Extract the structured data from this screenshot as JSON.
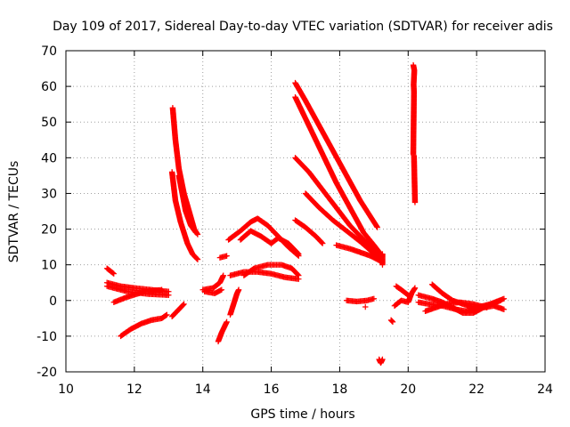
{
  "chart_data": {
    "type": "scatter",
    "title": "Day 109 of 2017, Sidereal Day-to-day VTEC variation (SDTVAR) for receiver adis",
    "xlabel": "GPS time / hours",
    "ylabel": "SDTVAR / TECUs",
    "xlim": [
      10,
      24
    ],
    "ylim": [
      -20,
      70
    ],
    "xticks": [
      "10",
      "12",
      "14",
      "16",
      "18",
      "20",
      "22",
      "24"
    ],
    "yticks": [
      "-20",
      "-10",
      "0",
      "10",
      "20",
      "30",
      "40",
      "50",
      "60",
      "70"
    ],
    "grid": true,
    "marker": "plus",
    "color": "#ff0000",
    "tracks": [
      {
        "name": "t1",
        "points": [
          [
            11.2,
            5
          ],
          [
            11.6,
            4
          ],
          [
            12.0,
            3.5
          ],
          [
            12.5,
            3
          ],
          [
            13.0,
            2.5
          ]
        ]
      },
      {
        "name": "t2",
        "points": [
          [
            11.2,
            4
          ],
          [
            11.8,
            2.5
          ],
          [
            12.4,
            1.8
          ],
          [
            13.0,
            1.5
          ]
        ]
      },
      {
        "name": "t3",
        "points": [
          [
            11.2,
            9
          ],
          [
            11.4,
            7.5
          ]
        ]
      },
      {
        "name": "t4",
        "points": [
          [
            11.4,
            -0.5
          ],
          [
            11.8,
            1
          ],
          [
            12.3,
            2.5
          ],
          [
            12.8,
            3
          ]
        ]
      },
      {
        "name": "t5",
        "points": [
          [
            11.6,
            -10
          ],
          [
            11.9,
            -8
          ],
          [
            12.2,
            -6.5
          ],
          [
            12.5,
            -5.5
          ],
          [
            12.8,
            -5
          ],
          [
            12.95,
            -4
          ]
        ]
      },
      {
        "name": "t6",
        "points": [
          [
            13.1,
            -4.5
          ],
          [
            13.3,
            -2.5
          ],
          [
            13.45,
            -1
          ]
        ]
      },
      {
        "name": "t7",
        "points": [
          [
            13.12,
            54
          ],
          [
            13.2,
            45
          ],
          [
            13.3,
            37
          ],
          [
            13.45,
            30
          ],
          [
            13.6,
            25
          ],
          [
            13.75,
            20
          ],
          [
            13.85,
            18.5
          ]
        ]
      },
      {
        "name": "t8",
        "points": [
          [
            13.1,
            36
          ],
          [
            13.2,
            28
          ],
          [
            13.35,
            22
          ],
          [
            13.55,
            16
          ],
          [
            13.7,
            13
          ],
          [
            13.85,
            11.5
          ]
        ]
      },
      {
        "name": "t9",
        "points": [
          [
            13.3,
            35
          ],
          [
            13.4,
            30
          ],
          [
            13.5,
            25
          ],
          [
            13.65,
            21
          ],
          [
            13.8,
            19
          ]
        ]
      },
      {
        "name": "t10",
        "points": [
          [
            14.0,
            3
          ],
          [
            14.3,
            3.5
          ],
          [
            14.5,
            5
          ],
          [
            14.6,
            7
          ]
        ]
      },
      {
        "name": "t11",
        "points": [
          [
            14.05,
            2.5
          ],
          [
            14.35,
            2
          ],
          [
            14.55,
            3
          ]
        ]
      },
      {
        "name": "t12",
        "points": [
          [
            14.45,
            -11.5
          ],
          [
            14.55,
            -9
          ],
          [
            14.7,
            -6
          ]
        ]
      },
      {
        "name": "t13",
        "points": [
          [
            14.8,
            -4
          ],
          [
            14.9,
            -1
          ],
          [
            15.0,
            2
          ],
          [
            15.05,
            3
          ]
        ]
      },
      {
        "name": "t14",
        "points": [
          [
            14.5,
            12
          ],
          [
            14.7,
            12.5
          ]
        ]
      },
      {
        "name": "t15",
        "points": [
          [
            14.75,
            17
          ],
          [
            15.1,
            19.5
          ],
          [
            15.4,
            22
          ],
          [
            15.6,
            23
          ],
          [
            15.9,
            21
          ],
          [
            16.2,
            18
          ],
          [
            16.5,
            15
          ],
          [
            16.8,
            12.5
          ]
        ]
      },
      {
        "name": "t16",
        "points": [
          [
            15.1,
            17
          ],
          [
            15.4,
            19.5
          ],
          [
            15.7,
            18
          ],
          [
            16.0,
            16
          ],
          [
            16.2,
            17.5
          ],
          [
            16.5,
            16
          ],
          [
            16.8,
            13
          ]
        ]
      },
      {
        "name": "t17",
        "points": [
          [
            14.8,
            7
          ],
          [
            15.2,
            8
          ],
          [
            15.6,
            8
          ],
          [
            16.0,
            7.5
          ],
          [
            16.4,
            6.5
          ],
          [
            16.8,
            6
          ]
        ]
      },
      {
        "name": "t18",
        "points": [
          [
            15.2,
            7
          ],
          [
            15.5,
            9
          ],
          [
            15.9,
            10
          ],
          [
            16.3,
            10
          ],
          [
            16.6,
            9
          ],
          [
            16.8,
            7
          ]
        ]
      },
      {
        "name": "t19",
        "points": [
          [
            16.7,
            61
          ],
          [
            17.0,
            56
          ],
          [
            17.4,
            49
          ],
          [
            17.8,
            42
          ],
          [
            18.2,
            35
          ],
          [
            18.6,
            28
          ],
          [
            19.1,
            20.5
          ]
        ]
      },
      {
        "name": "t20",
        "points": [
          [
            16.7,
            57
          ],
          [
            17.1,
            49
          ],
          [
            17.5,
            41
          ],
          [
            17.9,
            33
          ],
          [
            18.3,
            26
          ],
          [
            18.7,
            19
          ],
          [
            19.0,
            15.5
          ],
          [
            19.2,
            13
          ]
        ]
      },
      {
        "name": "t21",
        "points": [
          [
            16.7,
            40
          ],
          [
            17.1,
            36
          ],
          [
            17.5,
            31
          ],
          [
            17.9,
            26
          ],
          [
            18.3,
            21
          ],
          [
            18.7,
            17
          ],
          [
            19.0,
            14
          ],
          [
            19.2,
            12
          ]
        ]
      },
      {
        "name": "t22",
        "points": [
          [
            17.0,
            30
          ],
          [
            17.4,
            26
          ],
          [
            17.8,
            22.5
          ],
          [
            18.2,
            19.5
          ],
          [
            18.6,
            16.5
          ],
          [
            18.9,
            14
          ],
          [
            19.15,
            12
          ]
        ]
      },
      {
        "name": "t23",
        "points": [
          [
            16.7,
            22.5
          ],
          [
            17.0,
            20.5
          ],
          [
            17.3,
            18
          ],
          [
            17.5,
            16
          ]
        ]
      },
      {
        "name": "t24",
        "points": [
          [
            17.9,
            15.5
          ],
          [
            18.3,
            14.5
          ],
          [
            18.6,
            13.5
          ],
          [
            18.9,
            12.5
          ],
          [
            19.2,
            11
          ]
        ]
      },
      {
        "name": "t25",
        "points": [
          [
            18.2,
            0
          ],
          [
            18.5,
            -0.3
          ],
          [
            18.8,
            0
          ],
          [
            19.0,
            0.5
          ]
        ]
      },
      {
        "name": "t26",
        "points": [
          [
            18.75,
            -1.8
          ]
        ]
      },
      {
        "name": "t27",
        "points": [
          [
            19.15,
            -16.5
          ],
          [
            19.2,
            -17.5
          ],
          [
            19.25,
            -16.5
          ]
        ]
      },
      {
        "name": "t28",
        "points": [
          [
            19.25,
            13
          ],
          [
            19.25,
            10
          ]
        ]
      },
      {
        "name": "t29",
        "points": [
          [
            19.5,
            -5.5
          ],
          [
            19.55,
            -6
          ]
        ]
      },
      {
        "name": "t30",
        "points": [
          [
            19.6,
            -1.5
          ],
          [
            19.8,
            0
          ],
          [
            20.0,
            -0.5
          ],
          [
            20.1,
            2
          ],
          [
            20.2,
            3.5
          ]
        ]
      },
      {
        "name": "t31",
        "points": [
          [
            19.65,
            4
          ],
          [
            19.8,
            3
          ],
          [
            20.0,
            1.5
          ]
        ]
      },
      {
        "name": "t32",
        "points": [
          [
            20.15,
            66
          ],
          [
            20.18,
            64.5
          ],
          [
            20.16,
            60.5
          ],
          [
            20.17,
            58.5
          ],
          [
            20.15,
            41
          ],
          [
            20.17,
            40.5
          ],
          [
            20.2,
            27.5
          ]
        ]
      },
      {
        "name": "t33",
        "points": [
          [
            20.3,
            -0.5
          ],
          [
            20.6,
            -1
          ],
          [
            21.0,
            -1.5
          ],
          [
            21.4,
            -2.5
          ],
          [
            21.7,
            -3
          ],
          [
            22.0,
            -2
          ],
          [
            22.4,
            -1
          ],
          [
            22.8,
            0.5
          ]
        ]
      },
      {
        "name": "t34",
        "points": [
          [
            20.3,
            1.5
          ],
          [
            20.7,
            0.5
          ],
          [
            21.0,
            -0.5
          ],
          [
            21.3,
            -2
          ],
          [
            21.6,
            -3.5
          ],
          [
            21.9,
            -3.5
          ],
          [
            22.2,
            -2
          ],
          [
            22.5,
            -1.5
          ],
          [
            22.8,
            -2.5
          ]
        ]
      },
      {
        "name": "t35",
        "points": [
          [
            20.7,
            4.5
          ],
          [
            21.0,
            2
          ],
          [
            21.3,
            0
          ],
          [
            21.6,
            -1
          ],
          [
            21.9,
            -2
          ],
          [
            22.3,
            -1.5
          ],
          [
            22.7,
            0
          ]
        ]
      },
      {
        "name": "t36",
        "points": [
          [
            20.5,
            -3
          ],
          [
            20.8,
            -2
          ],
          [
            21.1,
            -1
          ],
          [
            21.5,
            -0.5
          ],
          [
            21.9,
            -1
          ],
          [
            22.3,
            -2
          ]
        ]
      }
    ]
  }
}
